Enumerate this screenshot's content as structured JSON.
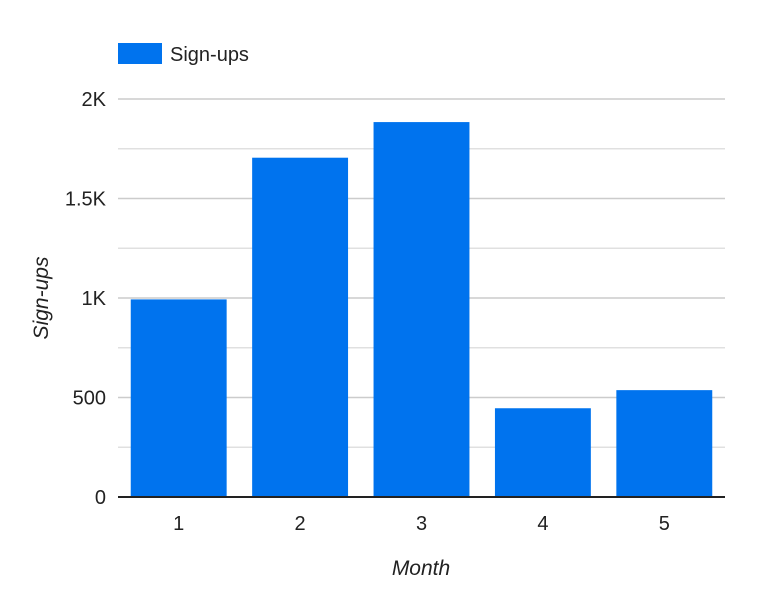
{
  "chart_data": {
    "type": "bar",
    "title": "",
    "xlabel": "Month",
    "ylabel": "Sign-ups",
    "categories": [
      "1",
      "2",
      "3",
      "4",
      "5"
    ],
    "series": [
      {
        "name": "Sign-ups",
        "values": [
          993,
          1705,
          1884,
          446,
          537
        ]
      }
    ],
    "ylim": [
      0,
      2000
    ],
    "yticks": [
      0,
      500,
      1000,
      1500,
      2000
    ],
    "ytick_labels": [
      "0",
      "500",
      "1K",
      "1.5K",
      "2K"
    ],
    "grid": true,
    "legend_position": "top-left",
    "bar_color": "#0073ee"
  }
}
